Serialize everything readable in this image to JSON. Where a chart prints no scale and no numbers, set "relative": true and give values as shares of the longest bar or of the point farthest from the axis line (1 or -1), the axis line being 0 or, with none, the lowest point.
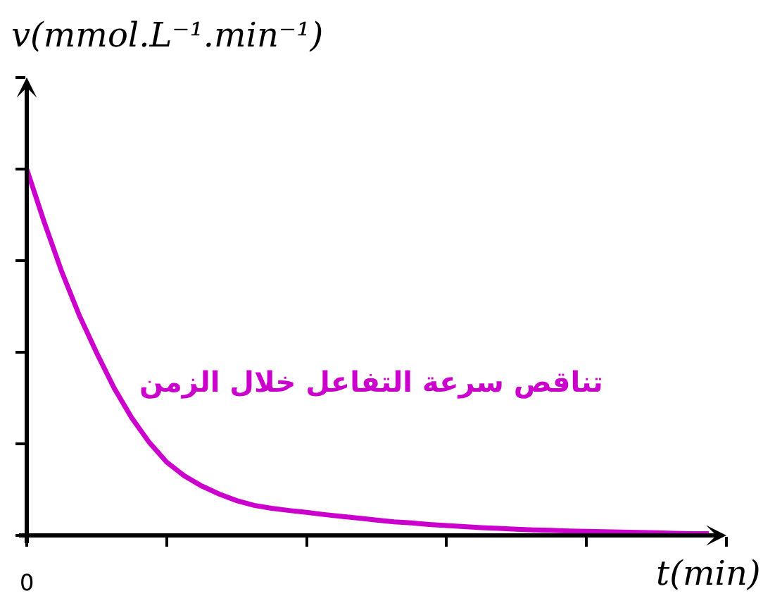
{
  "chart_data": {
    "type": "line",
    "relative": true,
    "xlabel": "t(min)",
    "ylabel": "v(mmol.L⁻¹.min⁻¹)",
    "annotations": [
      "0"
    ],
    "categories": [
      null,
      null,
      null,
      null,
      null,
      null,
      null,
      null,
      null,
      null,
      null,
      null,
      null,
      null,
      null,
      null,
      null,
      null,
      null,
      null,
      null,
      null,
      null,
      null,
      null,
      null,
      null,
      null,
      null,
      null,
      null,
      null,
      null,
      null,
      null,
      null,
      null,
      null,
      null,
      null
    ],
    "series": [
      {
        "name": "تناقص سرعة التفاعل خلال الزمن",
        "color": "#cc00cc",
        "values": [
          1.0,
          0.855,
          0.72,
          0.601,
          0.498,
          0.402,
          0.321,
          0.254,
          0.2,
          0.163,
          0.135,
          0.113,
          0.095,
          0.082,
          0.074,
          0.068,
          0.063,
          0.057,
          0.052,
          0.047,
          0.042,
          0.037,
          0.034,
          0.03,
          0.027,
          0.024,
          0.021,
          0.019,
          0.017,
          0.015,
          0.014,
          0.012,
          0.011,
          0.01,
          0.009,
          0.008,
          0.007,
          0.006,
          0.005,
          0.005
        ]
      }
    ],
    "grid": false,
    "legend": false,
    "marker": "none",
    "line_style": "solid"
  }
}
